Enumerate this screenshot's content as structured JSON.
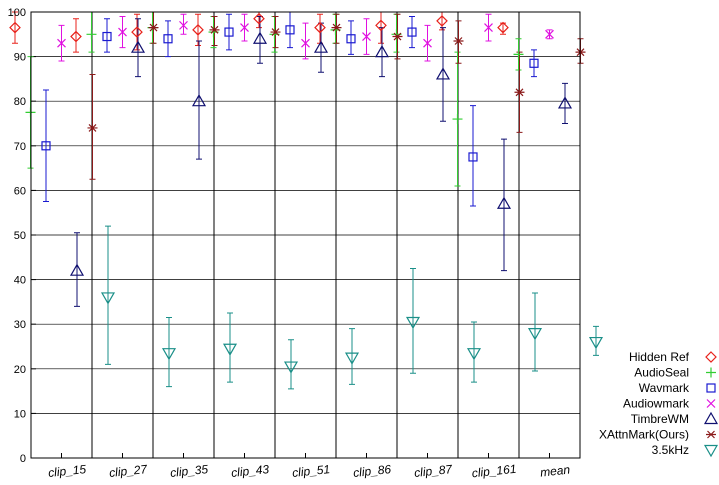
{
  "chart_data": {
    "type": "scatter",
    "categories": [
      "clip_15",
      "clip_27",
      "clip_35",
      "clip_43",
      "clip_51",
      "clip_86",
      "clip_87",
      "clip_161",
      "mean"
    ],
    "ylim": [
      0,
      100
    ],
    "yticks": [
      0,
      10,
      20,
      30,
      40,
      50,
      60,
      70,
      80,
      90,
      100
    ],
    "grid": true,
    "legend_position": "bottom-right",
    "series": [
      {
        "name": "Hidden Ref",
        "color": "#e8221b",
        "marker": "diamond",
        "values": [
          96.5,
          94.5,
          95.5,
          96,
          98.5,
          96.5,
          97,
          98,
          96.5
        ],
        "lower": [
          93,
          91,
          91.5,
          92.5,
          96.5,
          93,
          93,
          96,
          95
        ],
        "upper": [
          100,
          98.5,
          99.5,
          99.5,
          100,
          99.5,
          100,
          100,
          97.5
        ]
      },
      {
        "name": "AudioSeal",
        "color": "#32cd32",
        "marker": "plus",
        "values": [
          77.5,
          95,
          96.5,
          95.5,
          95,
          96,
          95,
          76,
          90.5
        ],
        "lower": [
          65,
          91,
          93,
          92,
          91,
          93,
          91,
          61,
          87
        ],
        "upper": [
          90,
          100,
          100,
          99,
          99,
          99.5,
          99.5,
          91,
          94
        ]
      },
      {
        "name": "Wavmark",
        "color": "#1a1ad0",
        "marker": "square",
        "values": [
          70,
          94.5,
          94,
          95.5,
          96,
          94,
          95.5,
          67.5,
          88.5
        ],
        "lower": [
          57.5,
          91,
          90,
          91.5,
          92,
          90.5,
          92,
          56.5,
          85.5
        ],
        "upper": [
          82.5,
          98.5,
          98,
          99.5,
          100,
          98,
          99,
          79,
          91.5
        ]
      },
      {
        "name": "Audiowmark",
        "color": "#e010e0",
        "marker": "x",
        "values": [
          93,
          95.5,
          97,
          96.5,
          93,
          94.5,
          93,
          96.5,
          95
        ],
        "lower": [
          89,
          92,
          95,
          93.5,
          89.5,
          90.5,
          89,
          93.5,
          94
        ],
        "upper": [
          97,
          99,
          99.5,
          99.5,
          97.5,
          98.5,
          97,
          99.5,
          96
        ]
      },
      {
        "name": "TimbreWM",
        "color": "#101070",
        "marker": "triangle-up",
        "values": [
          42,
          92,
          80,
          94,
          92,
          91,
          86,
          57,
          79.5
        ],
        "lower": [
          34,
          85.5,
          67,
          88.5,
          86.5,
          85.5,
          75.5,
          42,
          75
        ],
        "upper": [
          50.5,
          98.5,
          93.5,
          99,
          97.5,
          96.5,
          96.5,
          71.5,
          84
        ]
      },
      {
        "name": "XAttnMark(Ours)",
        "color": "#8b1a1a",
        "marker": "star",
        "values": [
          74,
          96.5,
          96,
          95.5,
          96.5,
          94.5,
          93.5,
          82,
          91
        ],
        "lower": [
          62.5,
          93,
          92.5,
          92,
          93,
          89.5,
          88.5,
          73,
          88.5
        ],
        "upper": [
          86,
          100,
          99,
          99,
          99.5,
          99.5,
          98,
          91,
          94
        ]
      },
      {
        "name": "3.5kHz",
        "color": "#1a8f88",
        "marker": "triangle-down",
        "values": [
          36,
          23.5,
          24.5,
          20.5,
          22.5,
          30.5,
          23.5,
          28,
          26
        ],
        "lower": [
          21,
          16,
          17,
          15.5,
          16.5,
          19,
          17,
          19.5,
          23
        ],
        "upper": [
          52,
          31.5,
          32.5,
          26.5,
          29,
          42.5,
          30.5,
          37,
          29.5
        ]
      }
    ]
  }
}
